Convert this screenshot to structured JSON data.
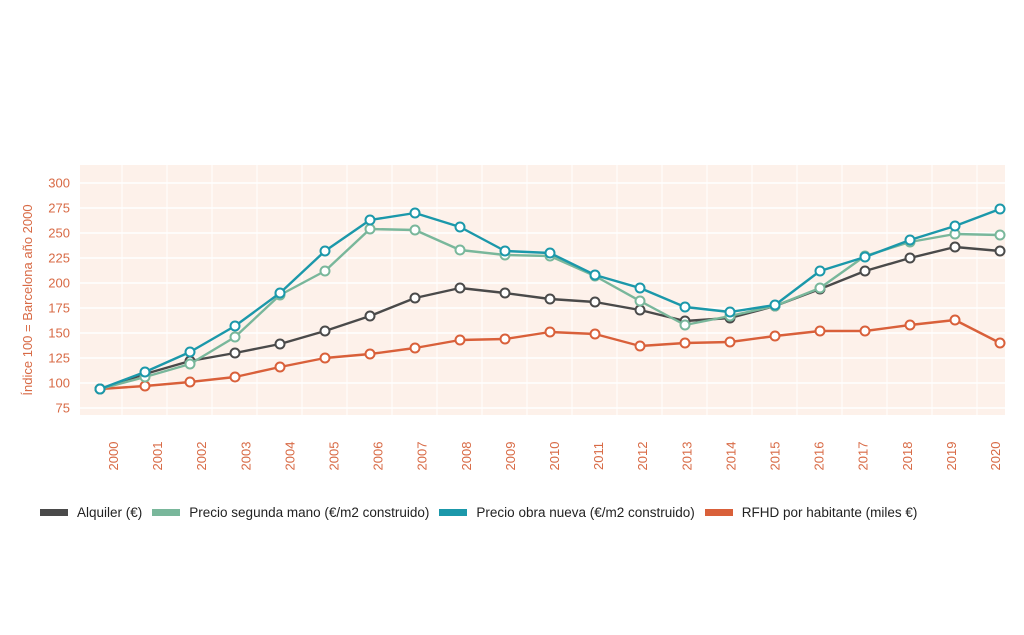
{
  "chart_data": {
    "type": "line",
    "ylabel": "Índice 100 = Barcelona año 2000",
    "xlabel": "",
    "ylim": [
      75,
      310
    ],
    "yticks": [
      75,
      100,
      125,
      150,
      175,
      200,
      225,
      250,
      275,
      300
    ],
    "ytick_labels": [
      "75",
      "100",
      "125",
      "150",
      "175",
      "200",
      "225",
      "250",
      "275",
      "300"
    ],
    "x_tick_labels": [
      "2000",
      "2001",
      "2002",
      "2003",
      "2004",
      "2005",
      "2006",
      "2007",
      "2008",
      "2009",
      "2010",
      "2011",
      "2012",
      "2013",
      "2014",
      "2015",
      "2016",
      "2017",
      "2018",
      "2019",
      "2020"
    ],
    "x_points": [
      2000,
      2001,
      2002,
      2003,
      2004,
      2005,
      2006,
      2007,
      2008,
      2009,
      2010,
      2011,
      2012,
      2013,
      2014,
      2015,
      2016,
      2017,
      2018,
      2019,
      2020
    ],
    "grid": true,
    "background_color": "#fdf1ea",
    "legend_position": "bottom",
    "series": [
      {
        "name": "Alquiler (€)",
        "color": "#4a4a4a",
        "values": [
          94,
          109,
          122,
          130,
          139,
          152,
          167,
          185,
          195,
          190,
          184,
          181,
          173,
          162,
          165,
          177,
          194,
          212,
          225,
          236,
          232
        ]
      },
      {
        "name": "Precio segunda mano (€/m2 construido)",
        "color": "#79b79b",
        "values": [
          94,
          106,
          119,
          146,
          188,
          212,
          254,
          253,
          233,
          228,
          227,
          207,
          182,
          158,
          167,
          177,
          195,
          227,
          241,
          249,
          248
        ]
      },
      {
        "name": "Precio obra nueva (€/m2 construido)",
        "color": "#1b98aa",
        "values": [
          94,
          111,
          131,
          157,
          190,
          232,
          263,
          270,
          256,
          232,
          230,
          208,
          195,
          176,
          171,
          178,
          212,
          226,
          243,
          257,
          274
        ]
      },
      {
        "name": "RFHD por habitante (miles €)",
        "color": "#d9603a",
        "values": [
          94,
          97,
          101,
          106,
          116,
          125,
          129,
          135,
          143,
          144,
          151,
          149,
          137,
          140,
          141,
          147,
          152,
          152,
          158,
          163,
          140
        ]
      }
    ]
  }
}
